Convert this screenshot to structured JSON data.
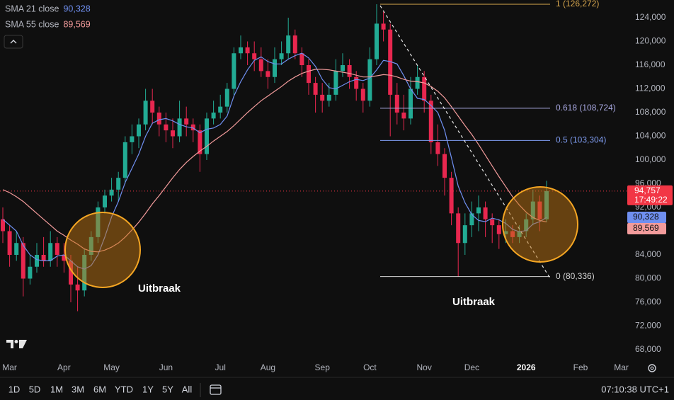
{
  "chart_data": {
    "type": "candlestick",
    "categories": [
      null,
      "Mar",
      null,
      null,
      null,
      null,
      null,
      null,
      null,
      "Apr",
      null,
      null,
      null,
      null,
      null,
      null,
      "May",
      null,
      null,
      null,
      null,
      null,
      null,
      null,
      "Jun",
      null,
      null,
      null,
      null,
      null,
      null,
      null,
      "Jul",
      null,
      null,
      null,
      null,
      null,
      null,
      "Aug",
      null,
      null,
      null,
      null,
      null,
      null,
      null,
      "Sep",
      null,
      null,
      null,
      null,
      null,
      null,
      "Oct",
      null,
      null,
      null,
      null,
      null,
      null,
      null,
      "Nov",
      null,
      null,
      null,
      null,
      null,
      null,
      "Dec",
      null,
      null,
      null,
      null,
      null,
      null,
      null,
      "2026",
      null,
      null,
      null,
      null,
      null,
      null,
      null,
      "Feb",
      null,
      null,
      null,
      null,
      null,
      "Mar"
    ],
    "open": [
      90000,
      88000,
      84000,
      86000,
      80000,
      82000,
      84000,
      83000,
      86000,
      84000,
      83000,
      79000,
      78000,
      84000,
      87000,
      92000,
      94000,
      95000,
      97000,
      103000,
      104000,
      106000,
      110000,
      108000,
      106000,
      105000,
      104000,
      107000,
      106000,
      105000,
      101000,
      107000,
      108000,
      109000,
      112000,
      118000,
      119000,
      118000,
      117000,
      115000,
      114000,
      117000,
      118000,
      121000,
      118000,
      116000,
      113000,
      111000,
      110000,
      111000,
      115000,
      116000,
      114000,
      112000,
      110000,
      117000,
      123000,
      122000,
      111000,
      108000,
      107000,
      112000,
      114000,
      110000,
      103000,
      101000,
      97000,
      91000,
      86000,
      89000,
      91000,
      92000,
      90000,
      89000,
      87500,
      88000,
      87000,
      88000,
      90000,
      93000,
      90000,
      null,
      null,
      null,
      null,
      null,
      null,
      null,
      null,
      null,
      null,
      null
    ],
    "high": [
      92000,
      89000,
      88000,
      87000,
      84000,
      86000,
      87000,
      88000,
      87000,
      86000,
      84000,
      82000,
      85000,
      88000,
      93000,
      95000,
      97000,
      98000,
      104000,
      106000,
      107000,
      112000,
      112000,
      109000,
      108000,
      107000,
      110000,
      109000,
      107000,
      106000,
      108000,
      110000,
      111000,
      113000,
      119000,
      121000,
      120000,
      120000,
      119000,
      117000,
      119000,
      120000,
      124000,
      122000,
      119000,
      117000,
      114000,
      113000,
      113000,
      117000,
      118000,
      117000,
      115000,
      113000,
      119000,
      126272,
      125000,
      123000,
      113000,
      111000,
      114000,
      116000,
      115000,
      111000,
      106000,
      102000,
      98000,
      92000,
      91000,
      93000,
      94000,
      93000,
      91000,
      90000,
      90000,
      89000,
      89000,
      91000,
      95000,
      94000,
      96500,
      null,
      null,
      null,
      null,
      null,
      null,
      null,
      null,
      null,
      null,
      null
    ],
    "low": [
      86000,
      82000,
      83000,
      77000,
      79000,
      81000,
      82000,
      82000,
      82000,
      81000,
      76000,
      74500,
      77000,
      83000,
      86000,
      91000,
      93000,
      93000,
      96000,
      101000,
      102000,
      105000,
      106000,
      104000,
      103000,
      102000,
      103000,
      104000,
      103000,
      98000,
      100000,
      106000,
      107000,
      108000,
      111000,
      117000,
      116000,
      115000,
      114000,
      112000,
      113000,
      116000,
      117000,
      117000,
      114000,
      111000,
      108000,
      108000,
      109000,
      110000,
      114000,
      112000,
      110000,
      108000,
      109000,
      116000,
      120000,
      104000,
      106000,
      105000,
      106000,
      111000,
      108000,
      101000,
      99000,
      94000,
      89000,
      80336,
      84000,
      87000,
      88000,
      87000,
      86000,
      85000,
      86000,
      86000,
      86000,
      87000,
      89000,
      88000,
      89500,
      null,
      null,
      null,
      null,
      null,
      null,
      null,
      null,
      null,
      null,
      null
    ],
    "close": [
      88000,
      84000,
      86000,
      80000,
      82000,
      84000,
      83000,
      86000,
      84000,
      83000,
      79000,
      78000,
      84000,
      87000,
      92000,
      94000,
      95000,
      97000,
      103000,
      104000,
      106000,
      110000,
      108000,
      106000,
      105000,
      104000,
      107000,
      106000,
      105000,
      101000,
      107000,
      108000,
      109000,
      112000,
      118000,
      119000,
      118000,
      117000,
      115000,
      114000,
      117000,
      118000,
      121000,
      118000,
      116000,
      113000,
      111000,
      110000,
      111000,
      115000,
      116000,
      114000,
      112000,
      110000,
      117000,
      123000,
      122000,
      111000,
      108000,
      107000,
      112000,
      114000,
      110000,
      103000,
      101000,
      97000,
      91000,
      86000,
      89000,
      91000,
      92000,
      90000,
      89000,
      87500,
      88000,
      87000,
      88000,
      90000,
      93000,
      90000,
      94757,
      null,
      null,
      null,
      null,
      null,
      null,
      null,
      null,
      null,
      null,
      null
    ],
    "up_color": "#22ab94",
    "down_color": "#e8274f",
    "current_price": {
      "label": "94,757",
      "countdown": "17:49:22",
      "color": "#f23645"
    },
    "series": [
      {
        "name": "SMA 21 close",
        "color": "#6f8ff0",
        "values": [
          90000,
          89000,
          88000,
          85600,
          84000,
          83200,
          83000,
          83000,
          83800,
          84000,
          83000,
          82000,
          81600,
          82200,
          84000,
          87000,
          90400,
          93000,
          96200,
          98600,
          101000,
          104000,
          106200,
          106800,
          107000,
          106600,
          106000,
          105600,
          105400,
          104600,
          105200,
          105400,
          106000,
          107400,
          110800,
          113200,
          115200,
          116800,
          117400,
          116600,
          116200,
          116200,
          117000,
          117600,
          118000,
          117200,
          115800,
          113600,
          112200,
          112000,
          112600,
          113200,
          113600,
          113400,
          113800,
          115200,
          116800,
          116600,
          116200,
          114200,
          112000,
          110400,
          110200,
          109200,
          108000,
          105000,
          100400,
          95600,
          92800,
          90800,
          89800,
          89600,
          90200,
          89900,
          89300,
          88300,
          87900,
          88100,
          89200,
          89600,
          90328,
          null,
          null,
          null,
          null,
          null,
          null,
          null,
          null,
          null,
          null,
          null
        ],
        "value_labels": [
          null,
          null,
          null,
          null,
          null,
          null,
          null,
          null,
          null,
          null,
          null,
          null,
          null,
          null,
          null,
          null,
          null,
          null,
          null,
          null,
          null,
          null,
          null,
          null,
          null,
          null,
          null,
          null,
          null,
          null,
          null,
          null,
          null,
          null,
          null,
          null,
          null,
          null,
          null,
          null,
          null,
          null,
          null,
          null,
          null,
          null,
          null,
          null,
          null,
          null,
          null,
          null,
          null,
          null,
          null,
          null,
          null,
          null,
          null,
          null,
          null,
          null,
          null,
          null,
          null,
          null,
          null,
          null,
          null,
          null,
          null,
          null,
          null,
          null,
          null,
          null,
          null,
          null,
          null,
          null,
          "90,328",
          null,
          null,
          null,
          null,
          null,
          null,
          null,
          null,
          null,
          null,
          null
        ]
      },
      {
        "name": "SMA 55 close",
        "color": "#f29b9b",
        "values": [
          95000,
          94500,
          93800,
          93000,
          92000,
          91000,
          90000,
          89000,
          88000,
          87300,
          86500,
          85800,
          85000,
          84600,
          84500,
          84800,
          85300,
          86000,
          87000,
          88200,
          89500,
          91000,
          92600,
          94000,
          95500,
          97000,
          98400,
          99600,
          100600,
          101500,
          102300,
          103200,
          104000,
          104800,
          105800,
          106900,
          108000,
          109000,
          110000,
          110800,
          111600,
          112400,
          113300,
          114000,
          114600,
          115000,
          115300,
          115300,
          115200,
          115000,
          114800,
          114600,
          114300,
          114000,
          114000,
          114200,
          114400,
          114300,
          114000,
          113600,
          113300,
          113200,
          113000,
          112400,
          111600,
          110500,
          109000,
          107400,
          105800,
          104300,
          102600,
          100800,
          99000,
          97200,
          95500,
          93800,
          92400,
          91200,
          90300,
          89800,
          89569,
          null,
          null,
          null,
          null,
          null,
          null,
          null,
          null,
          null,
          null,
          null
        ],
        "value_labels": [
          null,
          null,
          null,
          null,
          null,
          null,
          null,
          null,
          null,
          null,
          null,
          null,
          null,
          null,
          null,
          null,
          null,
          null,
          null,
          null,
          null,
          null,
          null,
          null,
          null,
          null,
          null,
          null,
          null,
          null,
          null,
          null,
          null,
          null,
          null,
          null,
          null,
          null,
          null,
          null,
          null,
          null,
          null,
          null,
          null,
          null,
          null,
          null,
          null,
          null,
          null,
          null,
          null,
          null,
          null,
          null,
          null,
          null,
          null,
          null,
          null,
          null,
          null,
          null,
          null,
          null,
          null,
          null,
          null,
          null,
          null,
          null,
          null,
          null,
          null,
          null,
          null,
          null,
          null,
          null,
          "89,569",
          null,
          null,
          null,
          null,
          null,
          null,
          null,
          null,
          null,
          null,
          null
        ]
      }
    ],
    "fib_levels": [
      {
        "value": 126272,
        "label": "1 (126,272)",
        "color": "#d9a84e"
      },
      {
        "value": 108724,
        "label": "0.618 (108,724)",
        "color": "#a7a7e0"
      },
      {
        "value": 103304,
        "label": "0.5 (103,304)",
        "color": "#7f9cf0"
      },
      {
        "value": 80336,
        "label": "0 (80,336)",
        "color": "#d6d6d6"
      }
    ],
    "annotations": [
      "Uitbraak",
      "Uitbraak"
    ],
    "ylim": [
      66448,
      126985
    ],
    "yticks": [
      {
        "value": 68000,
        "label": "68,000"
      },
      {
        "value": 72000,
        "label": "72,000"
      },
      {
        "value": 76000,
        "label": "76,000"
      },
      {
        "value": 80000,
        "label": "80,000"
      },
      {
        "value": 84000,
        "label": "84,000"
      },
      {
        "value": 88000,
        "label": "88,000"
      },
      {
        "value": 92000,
        "label": "92,000"
      },
      {
        "value": 96000,
        "label": "96,000"
      },
      {
        "value": 100000,
        "label": "100,000"
      },
      {
        "value": 104000,
        "label": "104,000"
      },
      {
        "value": 108000,
        "label": "108,000"
      },
      {
        "value": 112000,
        "label": "112,000"
      },
      {
        "value": 116000,
        "label": "116,000"
      },
      {
        "value": 120000,
        "label": "120,000"
      },
      {
        "value": 124000,
        "label": "124,000"
      }
    ],
    "grid": false
  },
  "toolbar": {
    "ranges": [
      "1D",
      "5D",
      "1M",
      "3M",
      "6M",
      "YTD",
      "1Y",
      "5Y",
      "All"
    ],
    "clock": "07:10:38 UTC+1"
  }
}
